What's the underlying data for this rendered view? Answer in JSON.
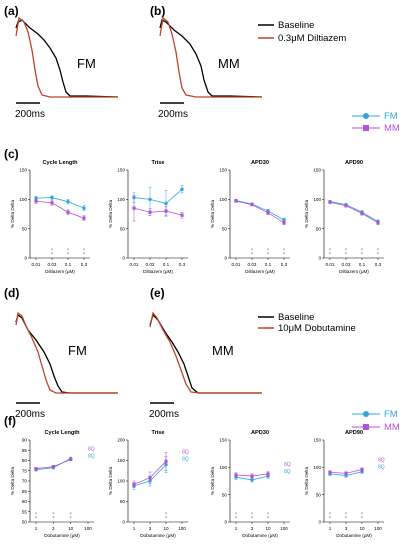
{
  "colors": {
    "baseline": "#000000",
    "drug": "#c0432a",
    "fm": "#2ea7de",
    "mm": "#b453d4",
    "star": "#6b7fe0"
  },
  "panels": {
    "a": "(a)",
    "b": "(b)",
    "c": "(c)",
    "d": "(d)",
    "e": "(e)",
    "f": "(f)"
  },
  "traces_top": {
    "legend_baseline": "Baseline",
    "legend_drug": "0.3μM Diltiazem",
    "label_a": "FM",
    "label_b": "MM",
    "scalebar_a": "200ms",
    "scalebar_b": "200ms"
  },
  "traces_bottom": {
    "legend_baseline": "Baseline",
    "legend_drug": "10μM Dobutamine",
    "label_d": "FM",
    "label_e": "MM",
    "scalebar_d": "200ms",
    "scalebar_e": "200ms"
  },
  "legend_fm_top": "FM",
  "legend_mm_top": "MM",
  "legend_fm_bottom": "FM",
  "legend_mm_bottom": "MM",
  "chart_data": [
    {
      "id": "c1",
      "type": "line",
      "title": "Cycle Length",
      "xlabel": "Diltiazem (μM)",
      "ylabel": "% Delta Delta",
      "x_ticks": [
        "0.01",
        "0.03",
        "0.1",
        "0.3"
      ],
      "y_ticks": [
        "0",
        "50",
        "100",
        "150"
      ],
      "ylim": [
        0,
        150
      ],
      "series": [
        {
          "name": "FM",
          "values": [
            102,
            103,
            96,
            85
          ],
          "errors": [
            3,
            3,
            4,
            4
          ]
        },
        {
          "name": "MM",
          "values": [
            97,
            94,
            78,
            68
          ],
          "errors": [
            4,
            4,
            4,
            4
          ]
        }
      ],
      "stars": [
        {
          "x": "0.03",
          "text": "*"
        },
        {
          "x": "0.1",
          "text": "*"
        },
        {
          "x": "0.3",
          "text": "*"
        }
      ]
    },
    {
      "id": "c2",
      "type": "line",
      "title": "Trise",
      "xlabel": "Diltiazem (μM)",
      "ylabel": "% Delta Delta",
      "x_ticks": [
        "0.01",
        "0.03",
        "0.1",
        "0.3"
      ],
      "y_ticks": [
        "0",
        "50",
        "100",
        "150"
      ],
      "ylim": [
        0,
        150
      ],
      "series": [
        {
          "name": "FM",
          "values": [
            103,
            100,
            93,
            117
          ],
          "errors": [
            8,
            20,
            22,
            6
          ]
        },
        {
          "name": "MM",
          "values": [
            85,
            78,
            80,
            73
          ],
          "errors": [
            22,
            6,
            8,
            5
          ]
        }
      ],
      "stars": []
    },
    {
      "id": "c3",
      "type": "line",
      "title": "APD30",
      "xlabel": "Diltiazem (μM)",
      "ylabel": "% Delta Delta",
      "x_ticks": [
        "0.01",
        "0.03",
        "0.1",
        "0.3"
      ],
      "y_ticks": [
        "0",
        "50",
        "100",
        "150"
      ],
      "ylim": [
        0,
        150
      ],
      "series": [
        {
          "name": "FM",
          "values": [
            98,
            92,
            80,
            65
          ],
          "errors": [
            2,
            2,
            3,
            3
          ]
        },
        {
          "name": "MM",
          "values": [
            97,
            91,
            77,
            60
          ],
          "errors": [
            2,
            2,
            3,
            3
          ]
        }
      ],
      "stars": [
        {
          "x": "0.03",
          "text": "*"
        },
        {
          "x": "0.1",
          "text": "*"
        },
        {
          "x": "0.3",
          "text": "*"
        }
      ]
    },
    {
      "id": "c4",
      "type": "line",
      "title": "APD90",
      "xlabel": "Diltiazem (μM)",
      "ylabel": "% Delta Delta",
      "x_ticks": [
        "0.01",
        "0.03",
        "0.1",
        "0.3"
      ],
      "y_ticks": [
        "0",
        "50",
        "100",
        "150"
      ],
      "ylim": [
        0,
        150
      ],
      "series": [
        {
          "name": "FM",
          "values": [
            96,
            91,
            78,
            62
          ],
          "errors": [
            2,
            2,
            3,
            3
          ]
        },
        {
          "name": "MM",
          "values": [
            95,
            89,
            76,
            60
          ],
          "errors": [
            2,
            2,
            3,
            3
          ]
        }
      ],
      "stars": [
        {
          "x": "0.01",
          "text": "*"
        },
        {
          "x": "0.03",
          "text": "*"
        },
        {
          "x": "0.1",
          "text": "*"
        },
        {
          "x": "0.3",
          "text": "*"
        }
      ]
    },
    {
      "id": "f1",
      "type": "line",
      "title": "Cycle Length",
      "xlabel": "Dobutamine (μM)",
      "ylabel": "% Delta Delta",
      "x_ticks": [
        "1",
        "3",
        "10",
        "100"
      ],
      "y_ticks": [
        "50",
        "55",
        "60",
        "65",
        "70",
        "75",
        "80",
        "85",
        "90"
      ],
      "ylim": [
        50,
        90
      ],
      "series": [
        {
          "name": "FM",
          "values": [
            75.5,
            76.5,
            81
          ],
          "errors": [
            0.6,
            0.6,
            0.6
          ]
        },
        {
          "name": "MM",
          "values": [
            76,
            77,
            80.5
          ],
          "errors": [
            0.6,
            0.6,
            0.6
          ]
        }
      ],
      "stars": [
        {
          "x": "1",
          "text": "*"
        },
        {
          "x": "3",
          "text": "*"
        },
        {
          "x": "10",
          "text": "*"
        }
      ],
      "sig_labels": [
        "8Q",
        "8Q"
      ]
    },
    {
      "id": "f2",
      "type": "line",
      "title": "Trise",
      "xlabel": "Dobutamine (μM)",
      "ylabel": "% Delta Delta",
      "x_ticks": [
        "1",
        "3",
        "10",
        "100"
      ],
      "y_ticks": [
        "0",
        "50",
        "100",
        "150",
        "200"
      ],
      "ylim": [
        0,
        200
      ],
      "series": [
        {
          "name": "FM",
          "values": [
            88,
            100,
            140
          ],
          "errors": [
            8,
            12,
            20
          ]
        },
        {
          "name": "MM",
          "values": [
            92,
            108,
            148
          ],
          "errors": [
            8,
            14,
            22
          ]
        }
      ],
      "stars": [
        {
          "x": "10",
          "text": "*"
        }
      ],
      "sig_labels": [
        "8Q",
        "8Q"
      ]
    },
    {
      "id": "f3",
      "type": "line",
      "title": "APD30",
      "xlabel": "Dobutamine (μM)",
      "ylabel": "% Delta Delta",
      "x_ticks": [
        "1",
        "3",
        "10",
        "100"
      ],
      "y_ticks": [
        "0",
        "50",
        "100",
        "150"
      ],
      "ylim": [
        0,
        150
      ],
      "series": [
        {
          "name": "FM",
          "values": [
            82,
            77,
            84
          ],
          "errors": [
            4,
            4,
            4
          ]
        },
        {
          "name": "MM",
          "values": [
            86,
            84,
            88
          ],
          "errors": [
            4,
            4,
            4
          ]
        }
      ],
      "stars": [
        {
          "x": "1",
          "text": "*"
        },
        {
          "x": "3",
          "text": "*"
        },
        {
          "x": "10",
          "text": "*"
        }
      ],
      "sig_labels": [
        "8Q",
        "8Q"
      ]
    },
    {
      "id": "f4",
      "type": "line",
      "title": "APD90",
      "xlabel": "Dobutamine (μM)",
      "ylabel": "% Delta Delta",
      "x_ticks": [
        "1",
        "3",
        "10",
        "100"
      ],
      "y_ticks": [
        "0",
        "50",
        "100",
        "150"
      ],
      "ylim": [
        0,
        150
      ],
      "series": [
        {
          "name": "FM",
          "values": [
            88,
            85,
            92
          ],
          "errors": [
            3,
            3,
            3
          ]
        },
        {
          "name": "MM",
          "values": [
            91,
            89,
            96
          ],
          "errors": [
            3,
            3,
            3
          ]
        }
      ],
      "stars": [
        {
          "x": "1",
          "text": "*"
        },
        {
          "x": "3",
          "text": "*"
        },
        {
          "x": "10",
          "text": "*"
        }
      ],
      "sig_labels": [
        "8Q",
        "8Q"
      ]
    }
  ]
}
